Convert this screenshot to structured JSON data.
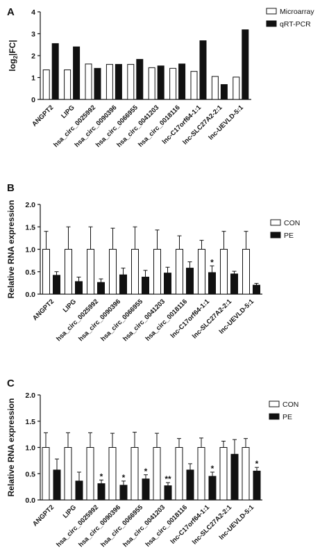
{
  "chart_data": [
    {
      "panel": "A",
      "type": "bar",
      "ylabel_main": "log",
      "ylabel_sub": "2",
      "ylabel_rest": "|FC|",
      "ylim": [
        0,
        4
      ],
      "yticks": [
        0,
        1,
        2,
        3,
        4
      ],
      "legend": "top-right",
      "categories": [
        "ANGPT2",
        "LIPG",
        "hsa_circ_0025992",
        "hsa_circ_0090396",
        "hsa_circ_0066955",
        "hsa_circ_0041203",
        "hsa_circ_0018116",
        "lnc-C17orf64-1:1",
        "lnc-SLC27A2-2:1",
        "lnc-UEVLD-5:1"
      ],
      "series": [
        {
          "name": "Microarray",
          "color": "#ffffff",
          "values": [
            1.35,
            1.35,
            1.62,
            1.6,
            1.6,
            1.45,
            1.42,
            1.28,
            1.05,
            1.02
          ]
        },
        {
          "name": "qRT-PCR",
          "color": "#111111",
          "values": [
            2.55,
            2.4,
            1.42,
            1.6,
            1.83,
            1.53,
            1.62,
            2.68,
            0.68,
            3.18
          ]
        }
      ]
    },
    {
      "panel": "B",
      "type": "bar",
      "ylabel": "Relative RNA expression",
      "ylim": [
        0,
        2.0
      ],
      "yticks": [
        "0.0",
        "0.5",
        "1.0",
        "1.5",
        "2.0"
      ],
      "legend": "top-right",
      "categories": [
        "ANGPT2",
        "LIPG",
        "hsa_circ_0025992",
        "hsa_circ_0090396",
        "hsa_circ_0066955",
        "hsa_circ_0041203",
        "hsa_circ_0018116",
        "lnc-C17orf64-1:1",
        "lnc-SLC27A2-2:1",
        "lnc-UEVLD-5:1"
      ],
      "series": [
        {
          "name": "CON",
          "color": "#ffffff",
          "values": [
            1.0,
            1.0,
            1.0,
            1.0,
            1.0,
            1.0,
            1.0,
            1.0,
            1.0,
            1.0
          ],
          "errors": [
            0.4,
            0.5,
            0.5,
            0.47,
            0.5,
            0.43,
            0.3,
            0.2,
            0.4,
            0.4
          ]
        },
        {
          "name": "PE",
          "color": "#111111",
          "values": [
            0.42,
            0.28,
            0.26,
            0.43,
            0.38,
            0.47,
            0.58,
            0.48,
            0.45,
            0.2
          ],
          "errors": [
            0.08,
            0.1,
            0.08,
            0.15,
            0.15,
            0.13,
            0.14,
            0.15,
            0.06,
            0.04
          ]
        }
      ],
      "significance": [
        "",
        "",
        "",
        "",
        "",
        "",
        "",
        "*",
        "",
        ""
      ]
    },
    {
      "panel": "C",
      "type": "bar",
      "ylabel": "Relative RNA expression",
      "ylim": [
        0,
        2.0
      ],
      "yticks": [
        "0.0",
        "0.5",
        "1.0",
        "1.5",
        "2.0"
      ],
      "legend": "top-right",
      "categories": [
        "ANGPT2",
        "LIPG",
        "hsa_circ_0025992",
        "hsa_circ_0090396",
        "hsa_circ_0066955",
        "hsa_circ_0041203",
        "hsa_circ_0018116",
        "lnc-C17orf64-1:1",
        "lnc-SLC27A2-2:1",
        "lnc-UEVLD-5:1"
      ],
      "series": [
        {
          "name": "CON",
          "color": "#ffffff",
          "values": [
            1.0,
            1.0,
            1.0,
            1.0,
            1.0,
            1.0,
            1.0,
            1.0,
            1.0,
            1.0
          ],
          "errors": [
            0.28,
            0.28,
            0.28,
            0.27,
            0.29,
            0.27,
            0.17,
            0.18,
            0.12,
            0.17
          ]
        },
        {
          "name": "PE",
          "color": "#111111",
          "values": [
            0.57,
            0.36,
            0.31,
            0.28,
            0.4,
            0.27,
            0.57,
            0.45,
            0.87,
            0.55
          ],
          "errors": [
            0.21,
            0.17,
            0.07,
            0.08,
            0.08,
            0.06,
            0.12,
            0.08,
            0.28,
            0.07
          ]
        }
      ],
      "significance": [
        "",
        "",
        "*",
        "*",
        "*",
        "**",
        "",
        "*",
        "",
        "*"
      ]
    }
  ]
}
